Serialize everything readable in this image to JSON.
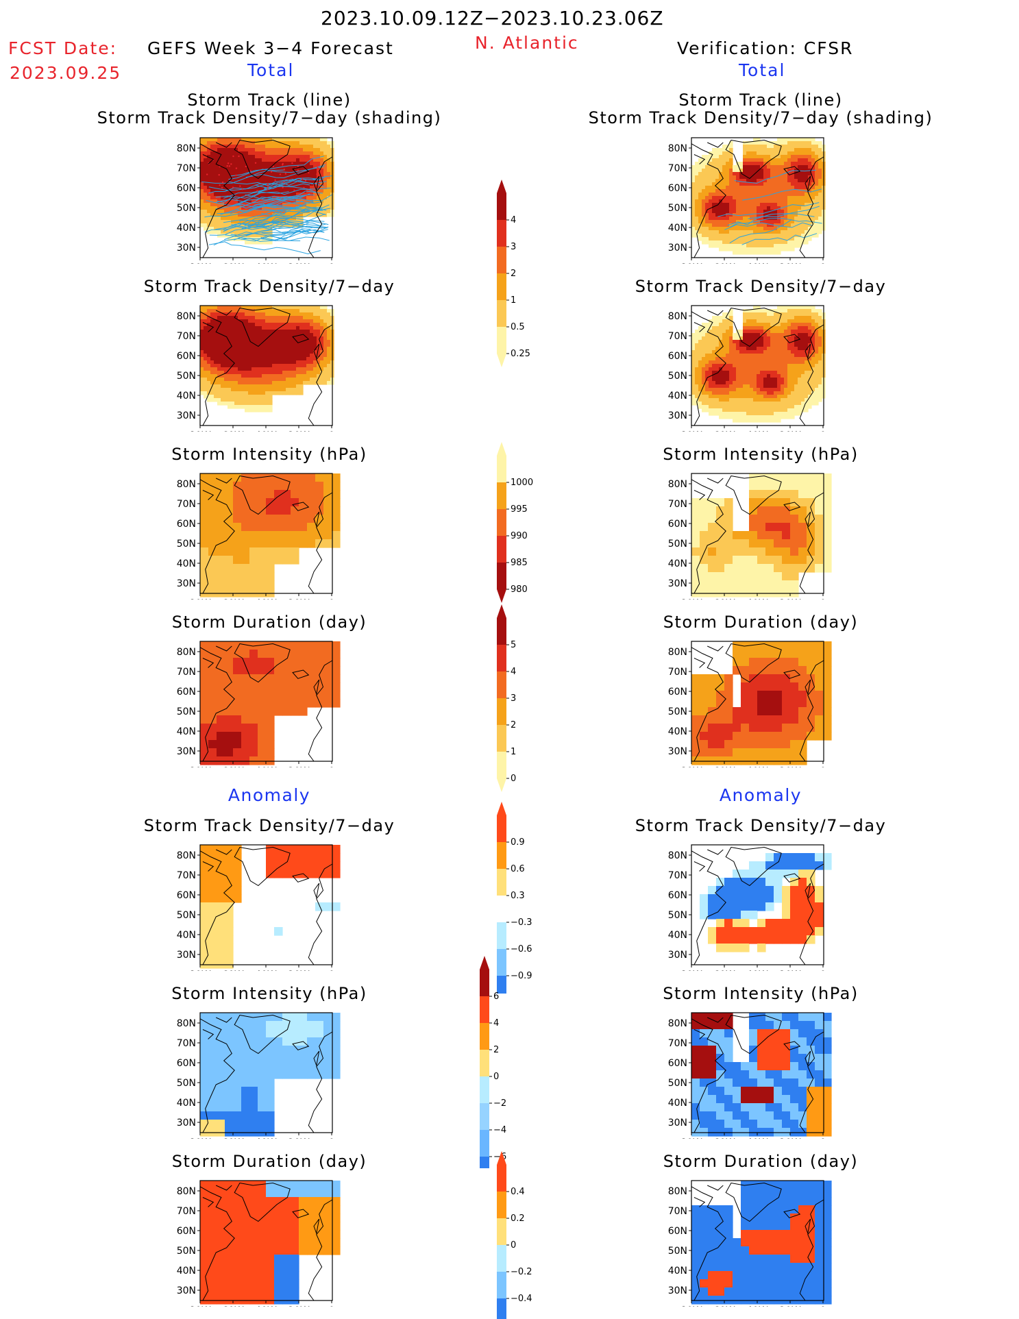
{
  "header": {
    "date_range": "2023.10.09.12Z−2023.10.23.06Z",
    "fcst_label": "FCST Date:",
    "fcst_date": "2023.09.25",
    "model": "GEFS Week 3−4 Forecast",
    "region": "N. Atlantic",
    "verification": "Verification: CFSR",
    "left_total": "Total",
    "right_total": "Total",
    "left_anomaly": "Anomaly",
    "right_anomaly": "Anomaly"
  },
  "panel_titles": {
    "track_line": "Storm Track (line)",
    "track_shading": "Storm Track Density/7−day (shading)",
    "density": "Storm Track Density/7−day",
    "intensity": "Storm Intensity (hPa)",
    "duration": "Storm Duration (day)"
  },
  "axes": {
    "lat_ticks": [
      "80N",
      "70N",
      "60N",
      "50N",
      "40N",
      "30N"
    ],
    "lon_ticks": [
      "80W",
      "60W",
      "40W",
      "20W",
      "0"
    ]
  },
  "colorbars": [
    {
      "id": "density_total",
      "labels": [
        "4",
        "3",
        "2",
        "1",
        "0.5",
        "0.25"
      ],
      "colors": [
        "#a50f0f",
        "#e0301e",
        "#f26b21",
        "#f5a21a",
        "#fbc854",
        "#fef4a8"
      ]
    },
    {
      "id": "intensity_total",
      "labels": [
        "1000",
        "995",
        "990",
        "985",
        "980"
      ],
      "colors": [
        "#fef4a8",
        "#f5a21a",
        "#f26b21",
        "#e0301e",
        "#a50f0f"
      ]
    },
    {
      "id": "duration_total",
      "labels": [
        "5",
        "4",
        "3",
        "2",
        "1",
        "0"
      ],
      "colors": [
        "#a50f0f",
        "#e0301e",
        "#f26b21",
        "#f5a21a",
        "#fbc854",
        "#fef4a8"
      ]
    },
    {
      "id": "density_anom",
      "labels": [
        "0.9",
        "0.6",
        "0.3",
        "−0.3",
        "−0.6",
        "−0.9"
      ],
      "colors": [
        "#ff4a1a",
        "#ff9a14",
        "#ffe07a",
        "#ffffff",
        "#b7ecff",
        "#7cc5ff",
        "#2f7ff0"
      ]
    },
    {
      "id": "intensity_anom",
      "labels": [
        "6",
        "4",
        "2",
        "0",
        "−2",
        "−4",
        "−6"
      ],
      "colors": [
        "#a50f0f",
        "#ff4a1a",
        "#ff9a14",
        "#ffe07a",
        "#b7ecff",
        "#96d3ff",
        "#6ab6ff",
        "#2f7ff0"
      ]
    },
    {
      "id": "duration_anom",
      "labels": [
        "0.4",
        "0.2",
        "0",
        "−0.2",
        "−0.4"
      ],
      "colors": [
        "#ff4a1a",
        "#ff9a14",
        "#ffe07a",
        "#b7ecff",
        "#7cc5ff",
        "#2f7ff0"
      ]
    }
  ],
  "palette": {
    "warm": [
      "#fef4a8",
      "#fbc854",
      "#f5a21a",
      "#f26b21",
      "#e0301e",
      "#a50f0f"
    ],
    "anom": [
      "#2f7ff0",
      "#7cc5ff",
      "#b7ecff",
      "#ffffff",
      "#ffe07a",
      "#ff9a14",
      "#ff4a1a",
      "#a50f0f"
    ],
    "track_line": "#2aa3e0",
    "track_marker": "#e8232b"
  }
}
